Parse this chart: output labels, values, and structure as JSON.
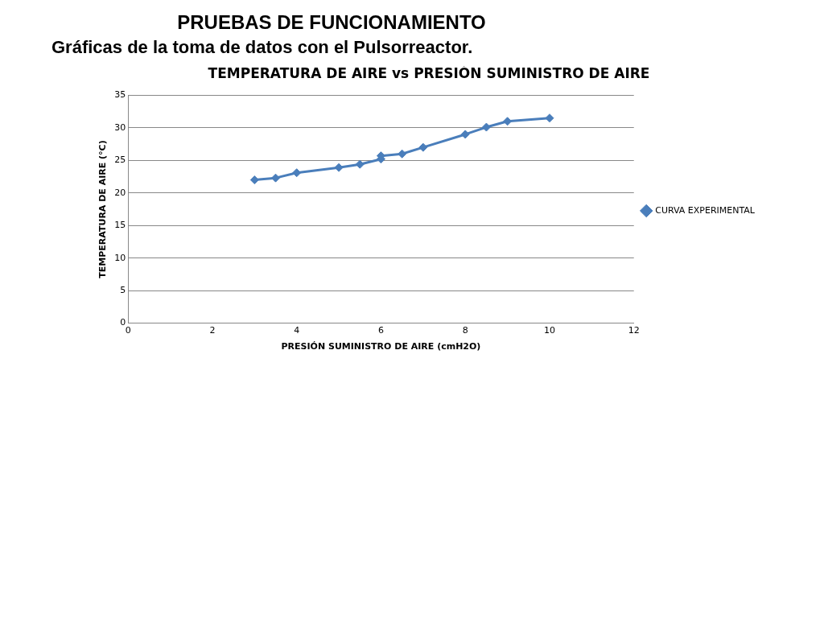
{
  "chart_data": {
    "type": "line",
    "title": "TEMPERATURA DE AIRE vs PRESIÓN SUMINISTRO DE AIRE",
    "xlabel": "PRESIÓN SUMINISTRO DE AIRE (cmH2O)",
    "ylabel": "TEMPERATURA DE AIRE (°C)",
    "annotations": [
      "PRUEBAS DE FUNCIONAMIENTO",
      "Gráficas de la toma de datos con el Pulsorreactor."
    ],
    "x": [
      3,
      3.5,
      4,
      5,
      5.5,
      6,
      6,
      6.5,
      7,
      8,
      8.5,
      9,
      10
    ],
    "series": [
      {
        "name": "CURVA EXPERIMENTAL",
        "color": "#4a7ebb",
        "values": [
          22,
          22.3,
          23.1,
          23.9,
          24.4,
          25.2,
          25.7,
          26,
          27,
          29,
          30.1,
          31,
          31.5
        ]
      }
    ],
    "xlim": [
      0,
      12
    ],
    "xticks": [
      0,
      2,
      4,
      6,
      8,
      10,
      12
    ],
    "ylim": [
      0,
      35
    ],
    "yticks": [
      0,
      5,
      10,
      15,
      20,
      25,
      30,
      35
    ],
    "grid": "y",
    "legend": "right",
    "marker": "diamond",
    "line_style": "solid"
  }
}
